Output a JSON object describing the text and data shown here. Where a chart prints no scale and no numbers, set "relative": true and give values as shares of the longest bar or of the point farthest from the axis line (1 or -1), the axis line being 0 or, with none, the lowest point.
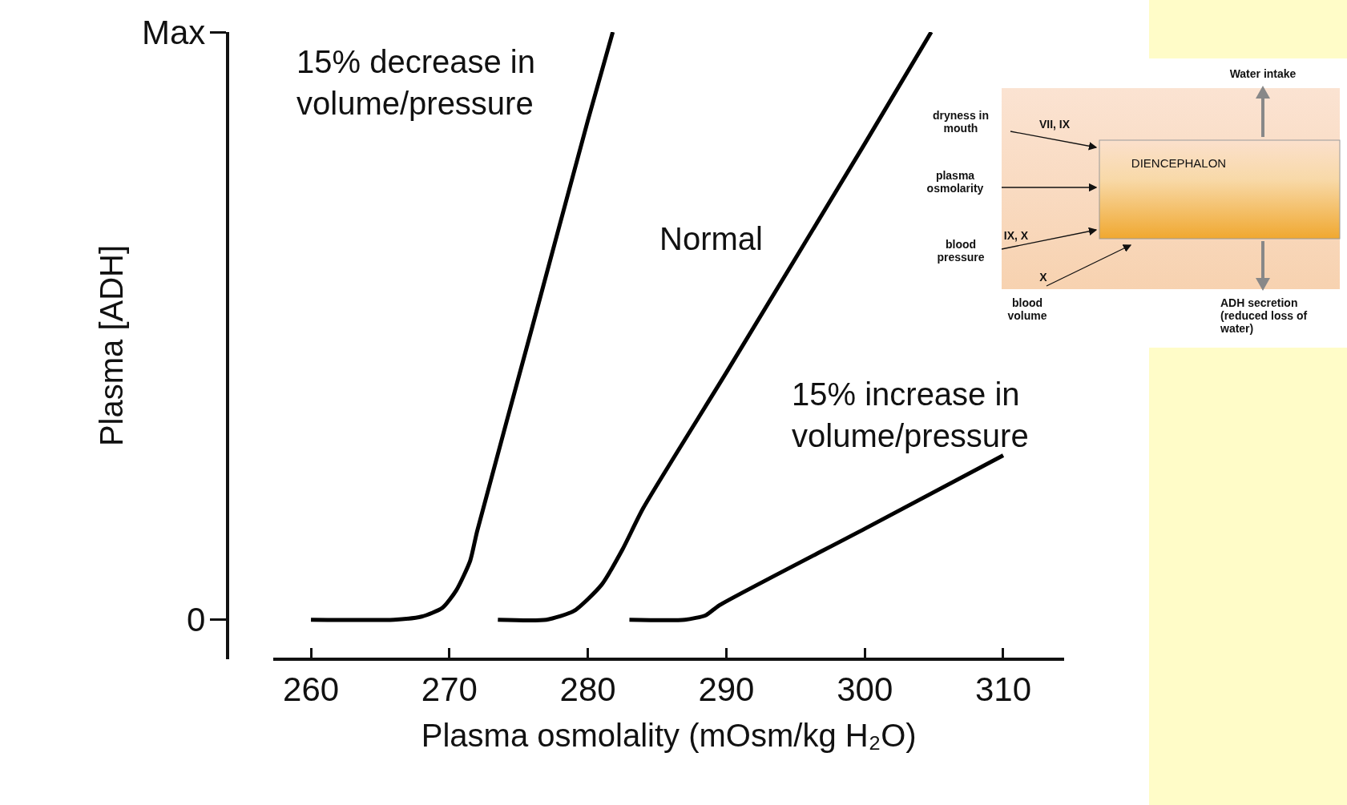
{
  "chart_data": {
    "type": "line",
    "xlabel": "Plasma osmolality (mOsm/kg H₂O)",
    "ylabel": "Plasma [ADH]",
    "xlim": [
      257.3,
      314.4
    ],
    "xticks": [
      260,
      270,
      280,
      290,
      300,
      310
    ],
    "relative": true,
    "grid": false,
    "marker": "none",
    "line_style": "solid",
    "series": [
      {
        "name": "15% decrease in volume/pressure",
        "color": "#000000",
        "x": [
          260,
          266,
          268,
          269.5,
          270.5,
          271.5,
          272,
          276,
          280,
          281.8
        ],
        "values": [
          0.063,
          0.063,
          0.068,
          0.082,
          0.11,
          0.157,
          0.204,
          0.531,
          0.859,
          1.0
        ]
      },
      {
        "name": "Normal",
        "color": "#000000",
        "x": [
          273.5,
          277,
          279,
          281,
          282.5,
          284,
          290,
          300,
          304.8
        ],
        "values": [
          0.063,
          0.063,
          0.077,
          0.119,
          0.175,
          0.241,
          0.457,
          0.822,
          1.0
        ]
      },
      {
        "name": "15% increase in volume/pressure",
        "color": "#000000",
        "x": [
          283,
          287,
          288.5,
          289.5,
          300,
          310
        ],
        "values": [
          0.063,
          0.063,
          0.07,
          0.086,
          0.208,
          0.325
        ]
      }
    ],
    "annotations": [
      "Max",
      "0",
      "Water intake",
      "dryness in mouth",
      "VII, IX",
      "DIENCEPHALON",
      "plasma osmolarity",
      "IX, X",
      "blood pressure",
      "X",
      "blood volume",
      "ADH secretion (reduced loss of water)"
    ]
  }
}
